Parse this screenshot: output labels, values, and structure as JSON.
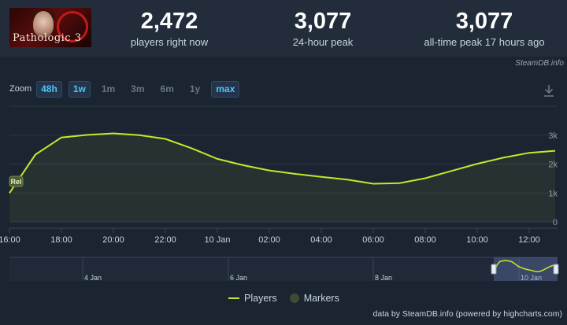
{
  "game": {
    "logo_text": "Pathologic 3"
  },
  "stats": [
    {
      "value": "2,472",
      "label": "players right now"
    },
    {
      "value": "3,077",
      "label": "24-hour peak"
    },
    {
      "value": "3,077",
      "label": "all-time peak 17 hours ago"
    }
  ],
  "source_credit": "SteamDB.info",
  "zoom": {
    "label": "Zoom",
    "buttons": [
      {
        "label": "48h",
        "active": true
      },
      {
        "label": "1w",
        "active": true
      },
      {
        "label": "1m",
        "active": false
      },
      {
        "label": "3m",
        "active": false
      },
      {
        "label": "6m",
        "active": false
      },
      {
        "label": "1y",
        "active": false
      },
      {
        "label": "max",
        "active": true
      }
    ]
  },
  "legend": {
    "players": "Players",
    "markers": "Markers"
  },
  "footer_credit": "data by SteamDB.info (powered by highcharts.com)",
  "colors": {
    "series": "#c6e82a",
    "background": "#1b2431",
    "header": "#222c3a",
    "accent": "#4fc3f7"
  },
  "chart_data": {
    "type": "line",
    "series": [
      {
        "name": "Players",
        "x": [
          "16:00",
          "17:00",
          "18:00",
          "19:00",
          "20:00",
          "21:00",
          "22:00",
          "23:00",
          "10 Jan 00:00",
          "01:00",
          "02:00",
          "03:00",
          "04:00",
          "05:00",
          "06:00",
          "07:00",
          "08:00",
          "09:00",
          "10:00",
          "11:00",
          "12:00",
          "13:00"
        ],
        "values": [
          1000,
          2330,
          2920,
          3010,
          3060,
          3000,
          2870,
          2550,
          2180,
          1960,
          1780,
          1660,
          1560,
          1460,
          1320,
          1340,
          1510,
          1760,
          2010,
          2220,
          2390,
          2460
        ]
      }
    ],
    "x_tick_labels": [
      "16:00",
      "18:00",
      "20:00",
      "22:00",
      "10 Jan",
      "02:00",
      "04:00",
      "06:00",
      "08:00",
      "10:00",
      "12:00"
    ],
    "y_tick_labels": [
      "0",
      "1k",
      "2k",
      "3k"
    ],
    "ylim": [
      0,
      4000
    ],
    "marker": {
      "label": "Rel",
      "x": "16:00"
    },
    "navigator": {
      "tick_labels": [
        "4 Jan",
        "6 Jan",
        "8 Jan",
        "10 Jan"
      ]
    },
    "grid": true,
    "legend_position": "bottom-center"
  }
}
